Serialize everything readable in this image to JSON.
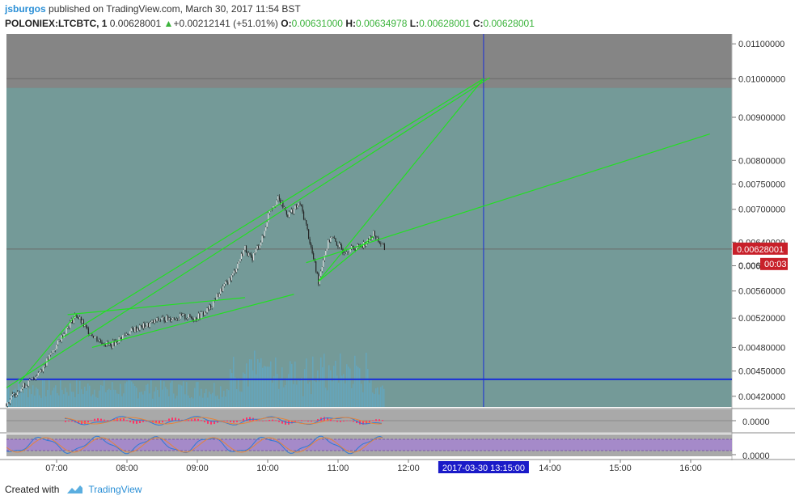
{
  "header": {
    "user": "jsburgos",
    "published_text": "published on TradingView.com, March 30, 2017 11:54 BST"
  },
  "quote": {
    "symbol": "POLONIEX:LTCBTC, 1",
    "last": "0.00628001",
    "change_arrow": "▲",
    "change": "+0.00212141 (+51.01%)",
    "open_label": "O:",
    "open": "0.00631000",
    "high_label": "H:",
    "high": "0.00634978",
    "low_label": "L:",
    "low": "0.00628001",
    "close_label": "C:",
    "close": "0.00628001"
  },
  "footer": {
    "created_with": "Created with",
    "brand": "TradingView"
  },
  "chart_data": {
    "type": "candlestick",
    "symbol": "POLONIEX:LTCBTC",
    "interval": "1",
    "x_tick_labels": [
      "07:00",
      "08:00",
      "09:00",
      "10:00",
      "11:00",
      "12:00",
      "14:00",
      "15:00",
      "16:00"
    ],
    "crosshair_time_label": "2017-03-30 13:15:00",
    "y_tick_labels": [
      "0.01100000",
      "0.01000000",
      "0.00900000",
      "0.00800000",
      "0.00750000",
      "0.00700000",
      "0.00640000",
      "0.00600000",
      "0.00560000",
      "0.00520000",
      "0.00480000",
      "0.00450000",
      "0.00420000"
    ],
    "y_scale": "log",
    "ylim": [
      0.00408,
      0.0113
    ],
    "last_price_label": "0.00628001",
    "partial_price_label": "0.006",
    "countdown_label": "00:03",
    "indicator_1_value": "0.0000",
    "indicator_2_value": "0.0000",
    "colors": {
      "background": "#6f8f8c",
      "upper_zone": "#858585",
      "lower_zone": "#749a98",
      "trendline": "#22e022",
      "horizontal_line": "#1a2fd8",
      "vertical_line": "#1a2fd8",
      "last_price_badge": "#c8202a",
      "time_badge": "#1a1ac8",
      "candle_up": "#dddddd",
      "candle_down": "#222222",
      "volume": "#5aaed8"
    },
    "price_path": [
      [
        "06:45",
        0.00412
      ],
      [
        "06:55",
        0.00428
      ],
      [
        "07:05",
        0.00438
      ],
      [
        "07:15",
        0.00455
      ],
      [
        "07:25",
        0.0048
      ],
      [
        "07:35",
        0.00508
      ],
      [
        "07:42",
        0.00525
      ],
      [
        "07:50",
        0.00505
      ],
      [
        "08:00",
        0.0049
      ],
      [
        "08:10",
        0.00482
      ],
      [
        "08:20",
        0.00495
      ],
      [
        "08:30",
        0.00505
      ],
      [
        "08:40",
        0.0051
      ],
      [
        "08:50",
        0.00518
      ],
      [
        "09:00",
        0.0052
      ],
      [
        "09:10",
        0.00522
      ],
      [
        "09:20",
        0.0052
      ],
      [
        "09:30",
        0.00532
      ],
      [
        "09:40",
        0.0056
      ],
      [
        "09:50",
        0.00585
      ],
      [
        "10:00",
        0.0063
      ],
      [
        "10:05",
        0.0061
      ],
      [
        "10:15",
        0.0065
      ],
      [
        "10:20",
        0.007
      ],
      [
        "10:27",
        0.0072
      ],
      [
        "10:35",
        0.0069
      ],
      [
        "10:45",
        0.0071
      ],
      [
        "10:50",
        0.0067
      ],
      [
        "10:55",
        0.0062
      ],
      [
        "11:00",
        0.00575
      ],
      [
        "11:05",
        0.0062
      ],
      [
        "11:10",
        0.0065
      ],
      [
        "11:20",
        0.00625
      ],
      [
        "11:30",
        0.0063
      ],
      [
        "11:40",
        0.0064
      ],
      [
        "11:45",
        0.00655
      ],
      [
        "11:50",
        0.0064
      ],
      [
        "11:54",
        0.00628
      ]
    ],
    "drawings": [
      {
        "type": "trendline",
        "from": [
          "06:45",
          0.0043
        ],
        "to": [
          "13:15",
          0.01
        ]
      },
      {
        "type": "trendline",
        "from": [
          "06:45",
          0.0043
        ],
        "to": [
          "13:15",
          0.01
        ]
      },
      {
        "type": "trendline",
        "from": [
          "07:35",
          0.00525
        ],
        "to": [
          "10:00",
          0.0055
        ]
      },
      {
        "type": "trendline",
        "from": [
          "11:00",
          0.0058
        ],
        "to": [
          "13:15",
          0.01
        ]
      },
      {
        "type": "trendline",
        "from": [
          "07:50",
          0.0048
        ],
        "to": [
          "16:20",
          0.0086
        ]
      },
      {
        "type": "horizontal_line",
        "y": 0.0044
      },
      {
        "type": "horizontal_line",
        "y": 0.00628001
      },
      {
        "type": "horizontal_line",
        "y": 0.01
      },
      {
        "type": "vertical_line",
        "x": "13:15"
      }
    ]
  }
}
